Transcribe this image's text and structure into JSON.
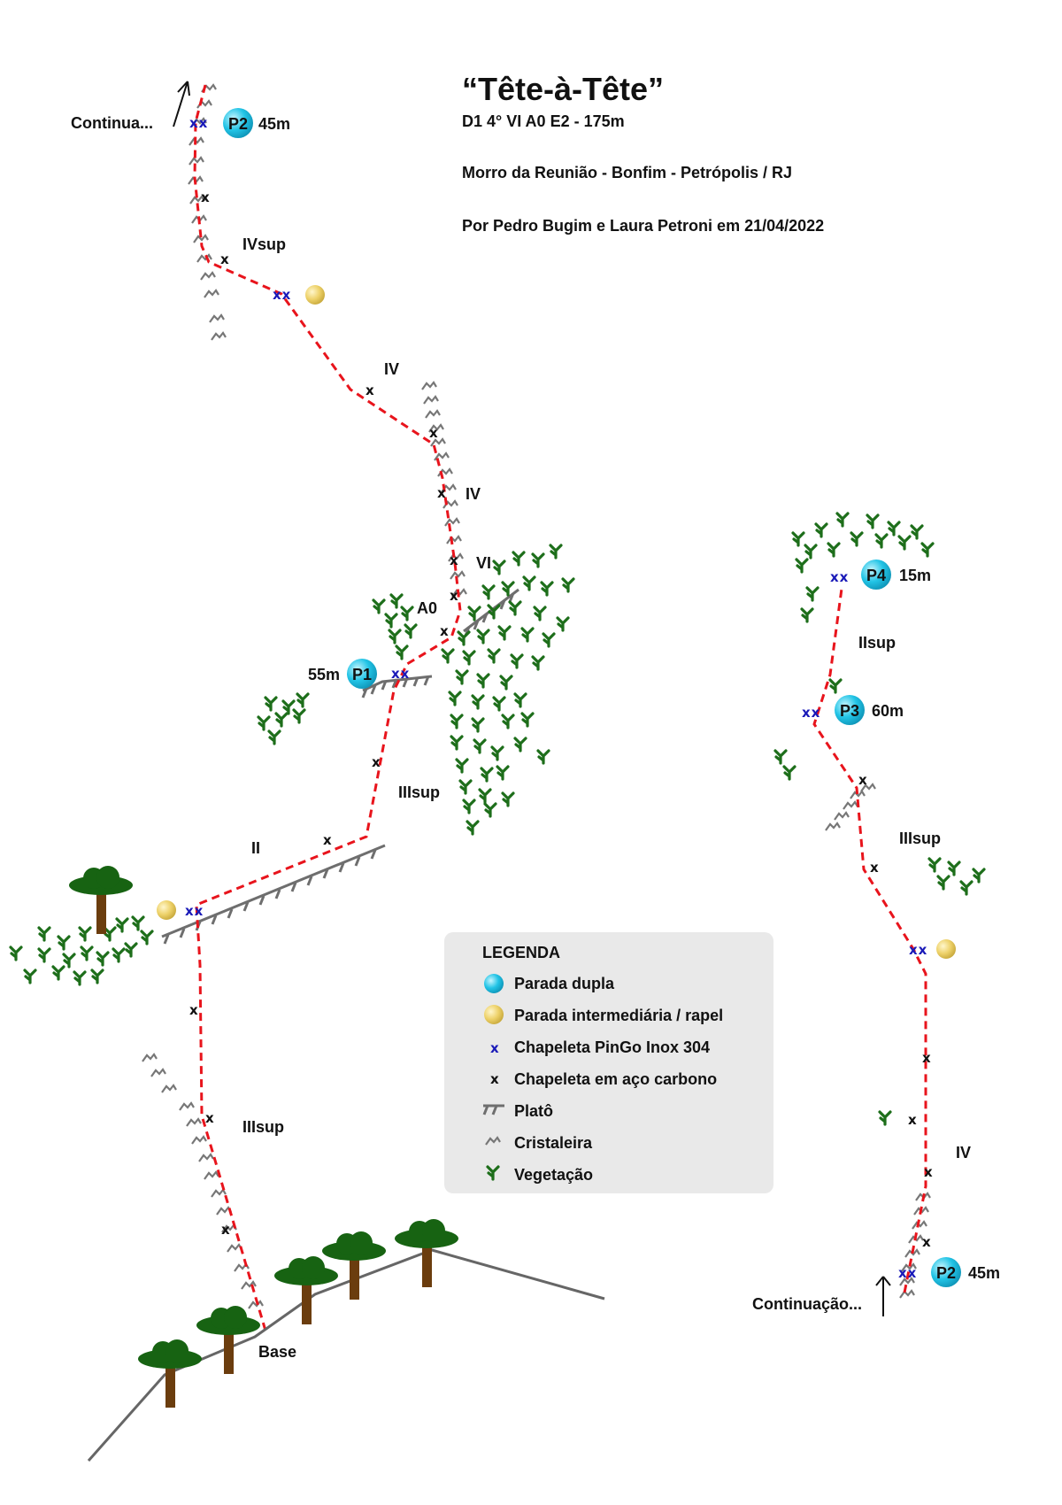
{
  "header": {
    "title": "“Tête-à-Tête”",
    "grade": "D1 4° VI A0 E2 - 175m",
    "location": "Morro da Reunião - Bonfim - Petrópolis / RJ",
    "authors": "Por Pedro Bugim e Laura Petroni em 21/04/2022"
  },
  "left_topo": {
    "continue_label": "Continua...",
    "base_label": "Base",
    "grades": {
      "p2_section": "IVsup",
      "face_upper": "IV",
      "crack": "IV",
      "crux": "VI",
      "aid": "A0",
      "ramp": "II",
      "after_p1": "IIIsup",
      "lower": "IIIsup"
    },
    "stations": {
      "p2": {
        "name": "P2",
        "length": "45m"
      },
      "p1": {
        "name": "P1",
        "length": "55m"
      }
    }
  },
  "right_topo": {
    "continue_label": "Continuação...",
    "grades": {
      "lower": "IV",
      "middle": "IIIsup",
      "upper": "IIsup"
    },
    "stations": {
      "p2": {
        "name": "P2",
        "length": "45m"
      },
      "p3": {
        "name": "P3",
        "length": "60m"
      },
      "p4": {
        "name": "P4",
        "length": "15m"
      }
    }
  },
  "bolts": {
    "inox": "xx",
    "carbon": "x"
  },
  "legend": {
    "title": "LEGENDA",
    "items": [
      {
        "symbol": "cyan-station-icon",
        "label": "Parada dupla"
      },
      {
        "symbol": "yellow-station-icon",
        "label": "Parada intermediária / rapel"
      },
      {
        "symbol": "blue-bolt-icon",
        "label": "Chapeleta PinGo Inox 304",
        "glyph": "x"
      },
      {
        "symbol": "black-bolt-icon",
        "label": "Chapeleta em aço carbono",
        "glyph": "x"
      },
      {
        "symbol": "plateau-icon",
        "label": "Platô"
      },
      {
        "symbol": "crystal-icon",
        "label": "Cristaleira"
      },
      {
        "symbol": "vegetation-icon",
        "label": "Vegetação"
      }
    ]
  },
  "colors": {
    "route": "#e8141c",
    "inox_bolt": "#1a1ab8",
    "station_cyan": "#1fc8e8",
    "station_yellow": "#f0d66a",
    "vegetation": "#1d6e1a",
    "tree_trunk": "#6b3d0e",
    "tree_canopy": "#176312",
    "legend_bg": "#e9e9e9"
  }
}
